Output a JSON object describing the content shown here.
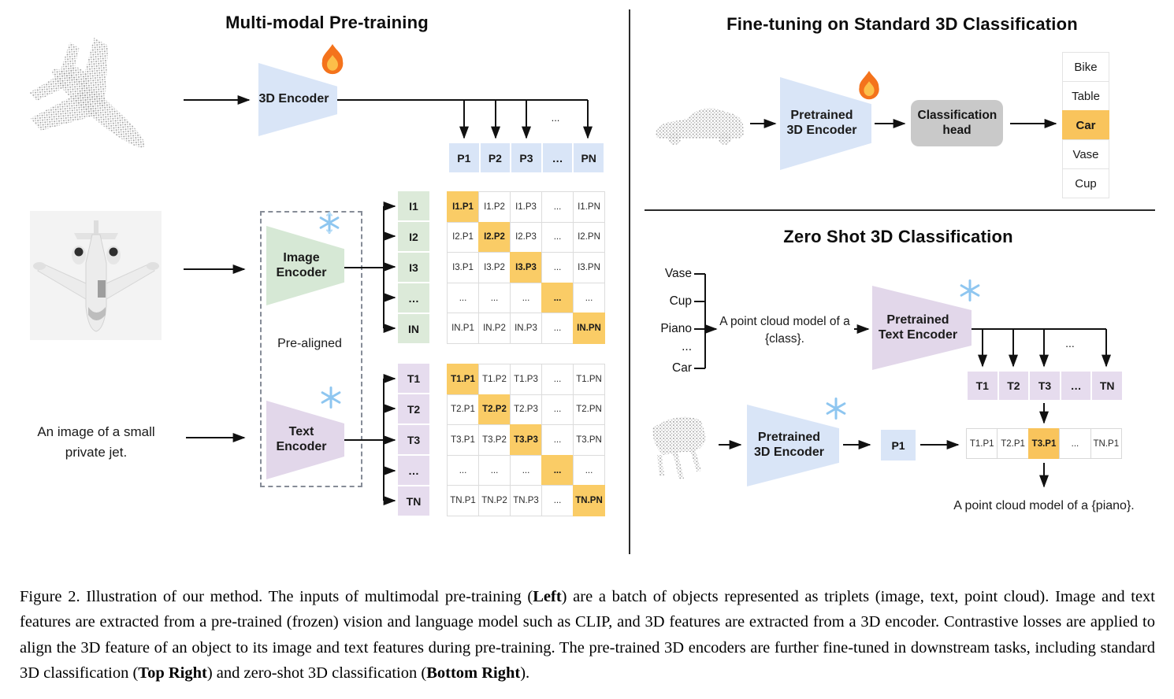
{
  "colors": {
    "encoder_blue": "#d9e5f7",
    "encoder_green": "#d6e8d5",
    "encoder_purple": "#e2d7ea",
    "highlight_orange": "#facc66",
    "class_highlight": "#f9c45c",
    "head_gray": "#c9c9c9"
  },
  "icons": {
    "trainable": "fire-icon",
    "frozen": "snowflake-icon"
  },
  "pretraining": {
    "title": "Multi-modal Pre-training",
    "encoder_3d_label": "3D Encoder",
    "image_encoder_label": "Image Encoder",
    "text_encoder_label": "Text Encoder",
    "pre_aligned_label": "Pre-aligned",
    "text_input": "An image of a small private jet.",
    "ellipsis": "...",
    "p_row": [
      "P1",
      "P2",
      "P3",
      "…",
      "PN"
    ],
    "i_col": [
      "I1",
      "I2",
      "I3",
      "…",
      "IN"
    ],
    "t_col": [
      "T1",
      "T2",
      "T3",
      "…",
      "TN"
    ],
    "image_matrix": {
      "rows": [
        [
          "I1.P1",
          "I1.P2",
          "I1.P3",
          "...",
          "I1.PN"
        ],
        [
          "I2.P1",
          "I2.P2",
          "I2.P3",
          "...",
          "I2.PN"
        ],
        [
          "I3.P1",
          "I3.P2",
          "I3.P3",
          "...",
          "I3.PN"
        ],
        [
          "...",
          "...",
          "...",
          "...",
          "..."
        ],
        [
          "IN.P1",
          "IN.P2",
          "IN.P3",
          "...",
          "IN.PN"
        ]
      ]
    },
    "text_matrix": {
      "rows": [
        [
          "T1.P1",
          "T1.P2",
          "T1.P3",
          "...",
          "T1.PN"
        ],
        [
          "T2.P1",
          "T2.P2",
          "T2.P3",
          "...",
          "T2.PN"
        ],
        [
          "T3.P1",
          "T3.P2",
          "T3.P3",
          "...",
          "T3.PN"
        ],
        [
          "...",
          "...",
          "...",
          "...",
          "..."
        ],
        [
          "TN.P1",
          "TN.P2",
          "TN.P3",
          "...",
          "TN.PN"
        ]
      ]
    }
  },
  "finetune": {
    "title": "Fine-tuning on Standard 3D Classification",
    "encoder_label": "Pretrained 3D Encoder",
    "head_label": "Classification head",
    "classes": [
      {
        "label": "Bike"
      },
      {
        "label": "Table"
      },
      {
        "label": "Car",
        "hl": true
      },
      {
        "label": "Vase"
      },
      {
        "label": "Cup"
      }
    ]
  },
  "zeroshot": {
    "title": "Zero Shot 3D Classification",
    "class_labels": [
      "Vase",
      "Cup",
      "Piano",
      "...",
      "Car"
    ],
    "prompt": "A point cloud model of a {class}.",
    "text_encoder_label": "Pretrained Text Encoder",
    "encoder_3d_label": "Pretrained 3D Encoder",
    "p1_label": "P1",
    "ellipsis": "...",
    "t_row": [
      "T1",
      "T2",
      "T3",
      "…",
      "TN"
    ],
    "sim_row": [
      {
        "label": "T1.P1"
      },
      {
        "label": "T2.P1"
      },
      {
        "label": "T3.P1",
        "hl": true
      },
      {
        "label": "..."
      },
      {
        "label": "TN.P1"
      }
    ],
    "result_text": "A point cloud model of a {piano}."
  },
  "caption": {
    "segments": [
      {
        "t": "Figure 2. Illustration of our method. The inputs of multimodal pre-training ("
      },
      {
        "t": "Left",
        "b": true
      },
      {
        "t": ") are a batch of objects represented as triplets (image, text, point cloud). Image and text features are extracted from a pre-trained (frozen) vision and language model such as CLIP, and 3D features are extracted from a 3D encoder. Contrastive losses are applied to align the 3D feature of an object to its image and text features during pre-training. The pre-trained 3D encoders are further fine-tuned in downstream tasks, including standard 3D classification ("
      },
      {
        "t": "Top Right",
        "b": true
      },
      {
        "t": ") and zero-shot 3D classification ("
      },
      {
        "t": "Bottom Right",
        "b": true
      },
      {
        "t": ")."
      }
    ]
  }
}
